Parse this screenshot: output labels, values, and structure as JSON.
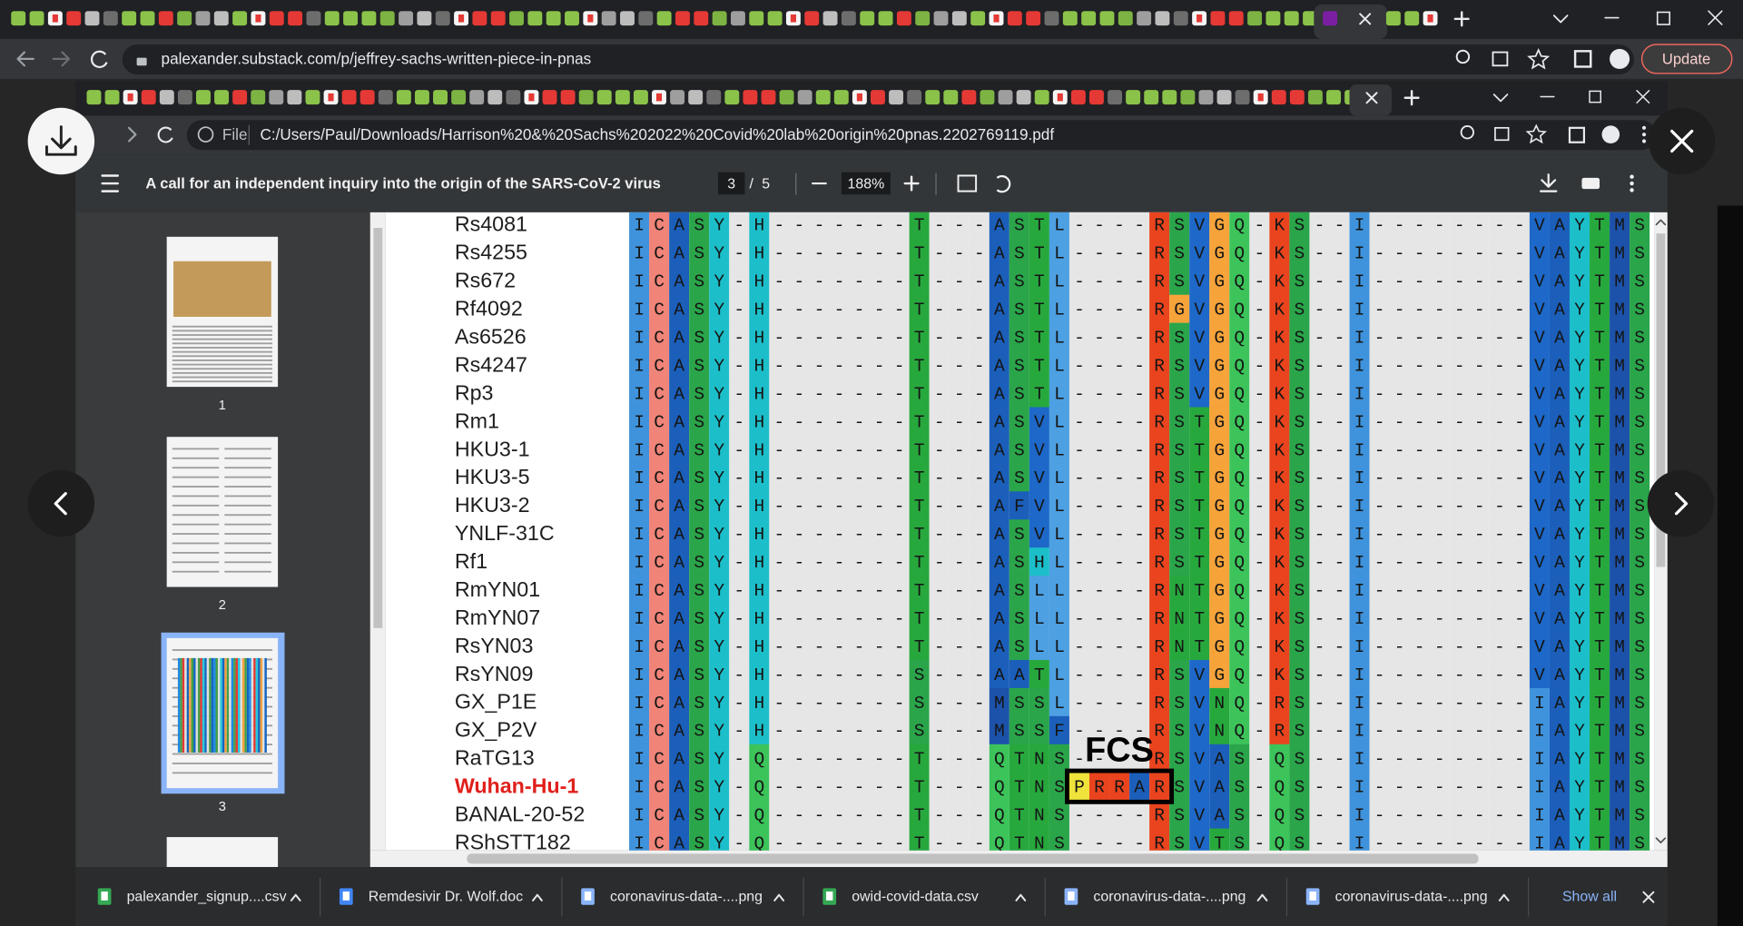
{
  "browser": {
    "url": "palexander.substack.com/p/jeffrey-sachs-written-piece-in-pnas",
    "update_button": "Update"
  },
  "inner_browser": {
    "file_label": "File",
    "url": "C:/Users/Paul/Downloads/Harrison%20&%20Sachs%202022%20Covid%20lab%20origin%20pnas.2202769119.pdf"
  },
  "pdf_viewer": {
    "title": "A call for an independent inquiry into the origin of the SARS-CoV-2 virus",
    "current_page": "3",
    "page_separator": "/",
    "total_pages": "5",
    "zoom": "188%",
    "thumbnails": [
      "1",
      "2",
      "3"
    ]
  },
  "alignment": {
    "fcs_label": "FCS",
    "rows": [
      {
        "name": "Rs4081",
        "sequence": "ICASY-H-------T---ASTL----RSVGQ-KS--I--------VAYTMS"
      },
      {
        "name": "Rs4255",
        "sequence": "ICASY-H-------T---ASTL----RSVGQ-KS--I--------VAYTMS"
      },
      {
        "name": "Rs672",
        "sequence": "ICASY-H-------T---ASTL----RSVGQ-KS--I--------VAYTMS"
      },
      {
        "name": "Rf4092",
        "sequence": "ICASY-H-------T---ASTL----RGVGQ-KS--I--------VAYTMS"
      },
      {
        "name": "As6526",
        "sequence": "ICASY-H-------T---ASTL----RSVGQ-KS--I--------VAYTMS"
      },
      {
        "name": "Rs4247",
        "sequence": "ICASY-H-------T---ASTL----RSVGQ-KS--I--------VAYTMS"
      },
      {
        "name": "Rp3",
        "sequence": "ICASY-H-------T---ASTL----RSVGQ-KS--I--------VAYTMS"
      },
      {
        "name": "Rm1",
        "sequence": "ICASY-H-------T---ASVL----RSTGQ-KS--I--------VAYTMS"
      },
      {
        "name": "HKU3-1",
        "sequence": "ICASY-H-------T---ASVL----RSTGQ-KS--I--------VAYTMS"
      },
      {
        "name": "HKU3-5",
        "sequence": "ICASY-H-------T---ASVL----RSTGQ-KS--I--------VAYTMS"
      },
      {
        "name": "HKU3-2",
        "sequence": "ICASY-H-------T---AFVL----RSTGQ-KS--I--------VAYTMS"
      },
      {
        "name": "YNLF-31C",
        "sequence": "ICASY-H-------T---ASVL----RSTGQ-KS--I--------VAYTMS"
      },
      {
        "name": "Rf1",
        "sequence": "ICASY-H-------T---ASHL----RSTGQ-KS--I--------VAYTMS"
      },
      {
        "name": "RmYN01",
        "sequence": "ICASY-H-------T---ASLL----RNTGQ-KS--I--------VAYTMS"
      },
      {
        "name": "RmYN07",
        "sequence": "ICASY-H-------T---ASLL----RNTGQ-KS--I--------VAYTMS"
      },
      {
        "name": "RsYN03",
        "sequence": "ICASY-H-------T---ASLL----RNTGQ-KS--I--------VAYTMS"
      },
      {
        "name": "RsYN09",
        "sequence": "ICASY-H-------S---AATL----RSVGQ-KS--I--------VAYTMS"
      },
      {
        "name": "GX_P1E",
        "sequence": "ICASY-H-------S---MSSL----RSVNQ-RS--I--------IAYTMS"
      },
      {
        "name": "GX_P2V",
        "sequence": "ICASY-H-------S---MSSF----RSVNQ-RS--I--------IAYTMS"
      },
      {
        "name": "RaTG13",
        "sequence": "ICASY-Q-------T---QTNS----RSVAS-QS--I--------IAYTMS"
      },
      {
        "name": "Wuhan-Hu-1",
        "sequence": "ICASY-Q-------T---QTNSPRRARSVAS-QS--I--------IAYTMS",
        "color": "#e0201c"
      },
      {
        "name": "BANAL-20-52",
        "sequence": "ICASY-Q-------T---QTNS----RSVAS-QS--I--------IAYTMS"
      },
      {
        "name": "RShSTT182",
        "sequence": "ICASY-Q-------T---QTNS----RSVTS-QS--I--------IAYTMS"
      }
    ]
  },
  "downloads": {
    "files": [
      "palexander_signup....csv",
      "Remdesivir Dr. Wolf.doc",
      "coronavirus-data-....png",
      "owid-covid-data.csv",
      "coronavirus-data-....png",
      "coronavirus-data-....png"
    ],
    "show_all": "Show all"
  }
}
